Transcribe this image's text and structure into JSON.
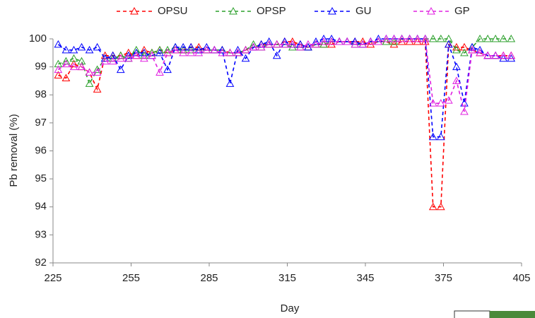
{
  "chart_data": {
    "type": "line",
    "x_label": "Day",
    "y_label": "Pb removal (%)",
    "xlim": [
      225,
      405
    ],
    "xticks": [
      225,
      255,
      285,
      315,
      345,
      375,
      405
    ],
    "ylim": [
      92,
      100
    ],
    "yticks": [
      92,
      93,
      94,
      95,
      96,
      97,
      98,
      99,
      100
    ],
    "grid": false,
    "legend": "top",
    "marker": "triangle",
    "line_style": "dashed",
    "x": [
      227,
      230,
      233,
      236,
      239,
      242,
      245,
      248,
      251,
      254,
      257,
      260,
      263,
      266,
      269,
      272,
      275,
      278,
      281,
      284,
      287,
      290,
      293,
      296,
      299,
      302,
      305,
      308,
      311,
      314,
      317,
      320,
      323,
      326,
      329,
      332,
      335,
      338,
      341,
      344,
      347,
      350,
      353,
      356,
      359,
      362,
      365,
      368,
      371,
      374,
      377,
      380,
      383,
      386,
      389,
      392,
      395,
      398,
      401
    ],
    "series": [
      {
        "name": "OPSU",
        "color": "#ff0000",
        "values": [
          98.7,
          98.6,
          99.1,
          99.0,
          98.8,
          98.2,
          99.4,
          99.4,
          99.4,
          99.5,
          99.4,
          99.6,
          99.5,
          99.6,
          99.5,
          99.6,
          99.6,
          99.7,
          99.7,
          99.6,
          99.6,
          99.6,
          99.5,
          99.5,
          99.6,
          99.7,
          99.8,
          99.8,
          99.8,
          99.9,
          99.9,
          99.8,
          99.7,
          99.8,
          99.8,
          99.8,
          99.9,
          99.9,
          99.9,
          99.9,
          99.8,
          99.9,
          99.9,
          99.8,
          99.9,
          99.9,
          99.9,
          99.9,
          94.0,
          94.0,
          99.8,
          99.7,
          99.7,
          99.6,
          99.5,
          99.4,
          99.4,
          99.4,
          99.4
        ]
      },
      {
        "name": "OPSP",
        "color": "#2ca02c",
        "values": [
          99.1,
          99.2,
          99.3,
          99.2,
          98.4,
          98.9,
          99.3,
          99.3,
          99.4,
          99.3,
          99.6,
          99.4,
          99.5,
          99.6,
          99.6,
          99.7,
          99.6,
          99.6,
          99.6,
          99.6,
          99.6,
          99.6,
          99.5,
          99.5,
          99.6,
          99.8,
          99.7,
          99.8,
          99.8,
          99.8,
          99.7,
          99.7,
          99.7,
          99.8,
          99.8,
          99.9,
          99.9,
          99.9,
          99.8,
          99.8,
          99.9,
          99.9,
          99.9,
          99.9,
          100,
          100,
          100,
          100,
          100,
          100,
          100,
          99.6,
          99.5,
          99.7,
          100,
          100,
          100,
          100,
          100
        ]
      },
      {
        "name": "GU",
        "color": "#0000ff",
        "values": [
          99.8,
          99.6,
          99.6,
          99.7,
          99.6,
          99.7,
          99.3,
          99.4,
          98.9,
          99.4,
          99.5,
          99.5,
          99.4,
          99.5,
          98.9,
          99.7,
          99.7,
          99.7,
          99.6,
          99.7,
          99.6,
          99.6,
          98.4,
          99.6,
          99.3,
          99.7,
          99.8,
          99.9,
          99.4,
          99.9,
          99.8,
          99.8,
          99.7,
          99.9,
          100,
          100,
          99.9,
          99.9,
          99.9,
          99.8,
          99.9,
          100,
          100,
          100,
          100,
          100,
          100,
          100,
          96.5,
          96.5,
          99.8,
          99.0,
          97.7,
          99.7,
          99.6,
          99.4,
          99.4,
          99.3,
          99.3
        ]
      },
      {
        "name": "GP",
        "color": "#e020e0",
        "values": [
          98.9,
          99.1,
          99.0,
          99.0,
          98.8,
          98.8,
          99.2,
          99.2,
          99.3,
          99.3,
          99.4,
          99.3,
          99.4,
          98.8,
          99.5,
          99.6,
          99.5,
          99.5,
          99.5,
          99.6,
          99.6,
          99.5,
          99.5,
          99.5,
          99.6,
          99.7,
          99.7,
          99.8,
          99.8,
          99.8,
          99.8,
          99.7,
          99.8,
          99.8,
          99.9,
          99.9,
          99.9,
          99.9,
          99.8,
          99.8,
          99.9,
          99.9,
          100,
          100,
          100,
          100,
          100,
          100,
          97.7,
          97.7,
          97.8,
          98.5,
          97.4,
          99.6,
          99.5,
          99.4,
          99.4,
          99.4,
          99.4
        ]
      }
    ]
  }
}
